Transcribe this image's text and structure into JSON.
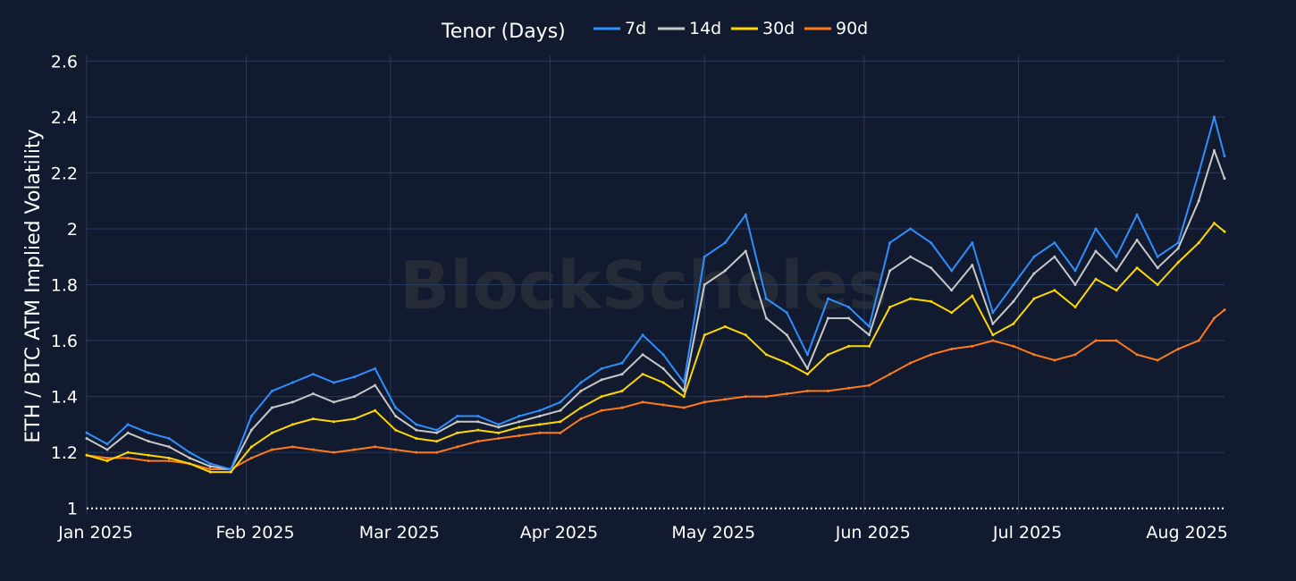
{
  "watermark": "BlockScholes",
  "chart_data": {
    "type": "line",
    "title": "",
    "legend_title": "Tenor (Days)",
    "legend_placement": "top-center",
    "xlabel": "",
    "ylabel": "ETH / BTC ATM Implied Volatility",
    "x_range": [
      "2025-01-01",
      "2025-08-10"
    ],
    "ylim": [
      0.98,
      2.62
    ],
    "y_ticks": [
      1,
      1.2,
      1.4,
      1.6,
      1.8,
      2,
      2.2,
      2.4,
      2.6
    ],
    "y_tick_labels": [
      "1",
      "1.2",
      "1.4",
      "1.6",
      "1.8",
      "2",
      "2.2",
      "2.4",
      "2.6"
    ],
    "x_ticks": [
      "2025-01-01",
      "2025-02-01",
      "2025-03-01",
      "2025-04-01",
      "2025-05-01",
      "2025-06-01",
      "2025-07-01",
      "2025-08-01"
    ],
    "x_tick_labels": [
      "Jan 2025",
      "Feb 2025",
      "Mar 2025",
      "Apr 2025",
      "May 2025",
      "Jun 2025",
      "Jul 2025",
      "Aug 2025"
    ],
    "grid": true,
    "reference_line": {
      "y": 1,
      "style": "dotted",
      "color": "#ffffff"
    },
    "x": [
      "2025-01-01",
      "2025-01-05",
      "2025-01-09",
      "2025-01-13",
      "2025-01-17",
      "2025-01-21",
      "2025-01-25",
      "2025-01-29",
      "2025-02-02",
      "2025-02-06",
      "2025-02-10",
      "2025-02-14",
      "2025-02-18",
      "2025-02-22",
      "2025-02-26",
      "2025-03-02",
      "2025-03-06",
      "2025-03-10",
      "2025-03-14",
      "2025-03-18",
      "2025-03-22",
      "2025-03-26",
      "2025-03-30",
      "2025-04-03",
      "2025-04-07",
      "2025-04-11",
      "2025-04-15",
      "2025-04-19",
      "2025-04-23",
      "2025-04-27",
      "2025-05-01",
      "2025-05-05",
      "2025-05-09",
      "2025-05-13",
      "2025-05-17",
      "2025-05-21",
      "2025-05-25",
      "2025-05-29",
      "2025-06-02",
      "2025-06-06",
      "2025-06-10",
      "2025-06-14",
      "2025-06-18",
      "2025-06-22",
      "2025-06-26",
      "2025-06-30",
      "2025-07-04",
      "2025-07-08",
      "2025-07-12",
      "2025-07-16",
      "2025-07-20",
      "2025-07-24",
      "2025-07-28",
      "2025-08-01",
      "2025-08-05",
      "2025-08-08",
      "2025-08-10"
    ],
    "series": [
      {
        "name": "7d",
        "color": "#2e8fff",
        "values": [
          1.27,
          1.23,
          1.3,
          1.27,
          1.25,
          1.2,
          1.16,
          1.14,
          1.33,
          1.42,
          1.45,
          1.48,
          1.45,
          1.47,
          1.5,
          1.36,
          1.3,
          1.28,
          1.33,
          1.33,
          1.3,
          1.33,
          1.35,
          1.38,
          1.45,
          1.5,
          1.52,
          1.62,
          1.55,
          1.45,
          1.9,
          1.95,
          2.05,
          1.75,
          1.7,
          1.55,
          1.75,
          1.72,
          1.65,
          1.95,
          2.0,
          1.95,
          1.85,
          1.95,
          1.7,
          1.8,
          1.9,
          1.95,
          1.85,
          2.0,
          1.9,
          2.05,
          1.9,
          1.95,
          2.2,
          2.4,
          2.26
        ]
      },
      {
        "name": "14d",
        "color": "#c8c8c8",
        "values": [
          1.25,
          1.21,
          1.27,
          1.24,
          1.22,
          1.18,
          1.15,
          1.14,
          1.28,
          1.36,
          1.38,
          1.41,
          1.38,
          1.4,
          1.44,
          1.33,
          1.28,
          1.27,
          1.31,
          1.31,
          1.29,
          1.31,
          1.33,
          1.35,
          1.42,
          1.46,
          1.48,
          1.55,
          1.5,
          1.42,
          1.8,
          1.85,
          1.92,
          1.68,
          1.62,
          1.5,
          1.68,
          1.68,
          1.62,
          1.85,
          1.9,
          1.86,
          1.78,
          1.87,
          1.66,
          1.74,
          1.84,
          1.9,
          1.8,
          1.92,
          1.85,
          1.96,
          1.86,
          1.93,
          2.1,
          2.28,
          2.18
        ]
      },
      {
        "name": "30d",
        "color": "#ffd700",
        "values": [
          1.19,
          1.17,
          1.2,
          1.19,
          1.18,
          1.16,
          1.13,
          1.13,
          1.22,
          1.27,
          1.3,
          1.32,
          1.31,
          1.32,
          1.35,
          1.28,
          1.25,
          1.24,
          1.27,
          1.28,
          1.27,
          1.29,
          1.3,
          1.31,
          1.36,
          1.4,
          1.42,
          1.48,
          1.45,
          1.4,
          1.62,
          1.65,
          1.62,
          1.55,
          1.52,
          1.48,
          1.55,
          1.58,
          1.58,
          1.72,
          1.75,
          1.74,
          1.7,
          1.76,
          1.62,
          1.66,
          1.75,
          1.78,
          1.72,
          1.82,
          1.78,
          1.86,
          1.8,
          1.88,
          1.95,
          2.02,
          1.99
        ]
      },
      {
        "name": "90d",
        "color": "#ff7a1a",
        "values": [
          1.19,
          1.18,
          1.18,
          1.17,
          1.17,
          1.16,
          1.14,
          1.14,
          1.18,
          1.21,
          1.22,
          1.21,
          1.2,
          1.21,
          1.22,
          1.21,
          1.2,
          1.2,
          1.22,
          1.24,
          1.25,
          1.26,
          1.27,
          1.27,
          1.32,
          1.35,
          1.36,
          1.38,
          1.37,
          1.36,
          1.38,
          1.39,
          1.4,
          1.4,
          1.41,
          1.42,
          1.42,
          1.43,
          1.44,
          1.48,
          1.52,
          1.55,
          1.57,
          1.58,
          1.6,
          1.58,
          1.55,
          1.53,
          1.55,
          1.6,
          1.6,
          1.55,
          1.53,
          1.57,
          1.6,
          1.68,
          1.71
        ]
      }
    ]
  }
}
